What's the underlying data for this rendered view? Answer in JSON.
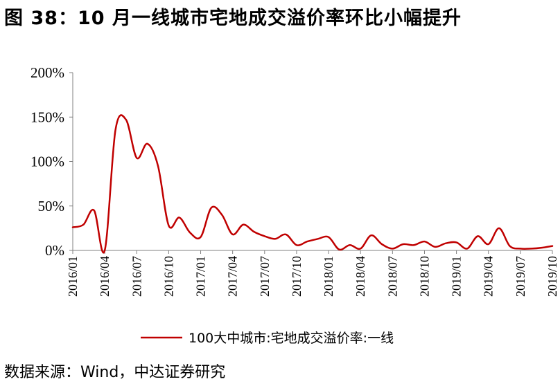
{
  "figure": {
    "title": "图 38：10 月一线城市宅地成交溢价率环比小幅提升",
    "source": "数据来源：Wind，中达证券研究"
  },
  "chart_data": {
    "type": "line",
    "title": "",
    "xlabel": "",
    "ylabel": "",
    "ylim": [
      0,
      200
    ],
    "yticks": [
      "0%",
      "50%",
      "100%",
      "150%",
      "200%"
    ],
    "ytick_values": [
      0,
      50,
      100,
      150,
      200
    ],
    "xticks": [
      "2016/01",
      "2016/04",
      "2016/07",
      "2016/10",
      "2017/01",
      "2017/04",
      "2017/07",
      "2017/10",
      "2018/01",
      "2018/04",
      "2018/07",
      "2018/10",
      "2019/01",
      "2019/04",
      "2019/07",
      "2019/10"
    ],
    "legend_position": "bottom",
    "grid": false,
    "color": "#c00000",
    "x": [
      "2016/01",
      "2016/02",
      "2016/03",
      "2016/04",
      "2016/05",
      "2016/06",
      "2016/07",
      "2016/08",
      "2016/09",
      "2016/10",
      "2016/11",
      "2016/12",
      "2017/01",
      "2017/02",
      "2017/03",
      "2017/04",
      "2017/05",
      "2017/06",
      "2017/07",
      "2017/08",
      "2017/09",
      "2017/10",
      "2017/11",
      "2017/12",
      "2018/01",
      "2018/02",
      "2018/03",
      "2018/04",
      "2018/05",
      "2018/06",
      "2018/07",
      "2018/08",
      "2018/09",
      "2018/10",
      "2018/11",
      "2018/12",
      "2019/01",
      "2019/02",
      "2019/03",
      "2019/04",
      "2019/05",
      "2019/06",
      "2019/07",
      "2019/08",
      "2019/09",
      "2019/10"
    ],
    "series": [
      {
        "name": "100大中城市:宅地成交溢价率:一线",
        "values": [
          26,
          29,
          45,
          0,
          135,
          147,
          104,
          120,
          95,
          28,
          37,
          20,
          15,
          48,
          40,
          18,
          29,
          21,
          16,
          13,
          18,
          6,
          10,
          13,
          15,
          1,
          6,
          2,
          17,
          7,
          2,
          7,
          6,
          10,
          4,
          8,
          9,
          2,
          16,
          7,
          25,
          5,
          2,
          2,
          3,
          5
        ]
      }
    ]
  }
}
